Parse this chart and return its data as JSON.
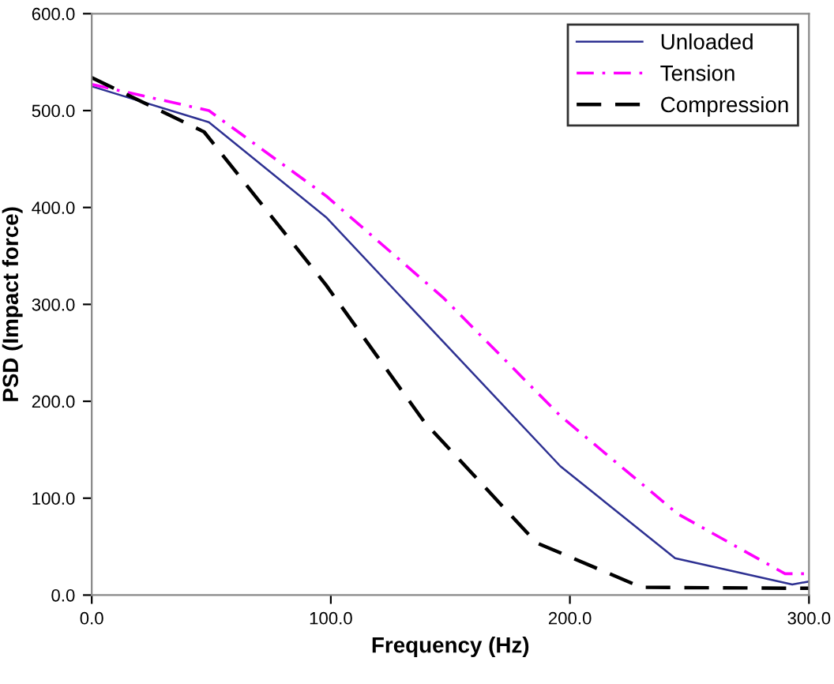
{
  "chart_data": {
    "type": "line",
    "xlabel": "Frequency (Hz)",
    "ylabel": "PSD (Impact force)",
    "xlim": [
      0,
      300
    ],
    "ylim": [
      0,
      600
    ],
    "xticks": [
      {
        "value": 0,
        "label": "0.0"
      },
      {
        "value": 100,
        "label": "100.0"
      },
      {
        "value": 200,
        "label": "200.0"
      },
      {
        "value": 300,
        "label": "300.0"
      }
    ],
    "yticks": [
      {
        "value": 0,
        "label": "0.0"
      },
      {
        "value": 100,
        "label": "100.0"
      },
      {
        "value": 200,
        "label": "200.0"
      },
      {
        "value": 300,
        "label": "300.0"
      },
      {
        "value": 400,
        "label": "400.0"
      },
      {
        "value": 500,
        "label": "500.0"
      },
      {
        "value": 600,
        "label": "600.0"
      }
    ],
    "legend": "top right",
    "grid": false,
    "series": [
      {
        "name": "Unloaded",
        "color": "#2e3192",
        "line_style": "solid",
        "x": [
          0,
          49,
          98,
          196,
          244,
          293,
          300
        ],
        "values": [
          525,
          488,
          390,
          133,
          38,
          11,
          14
        ]
      },
      {
        "name": "Tension",
        "color": "#ff00ff",
        "line_style": "dashdot",
        "x": [
          0,
          49,
          98,
          147,
          196,
          245,
          290,
          300
        ],
        "values": [
          527,
          500,
          412,
          307,
          185,
          84,
          22,
          22
        ]
      },
      {
        "name": "Compression",
        "color": "#000000",
        "line_style": "dashed",
        "x": [
          0,
          47,
          98,
          139,
          186,
          230,
          300
        ],
        "values": [
          534,
          478,
          320,
          179,
          54,
          8,
          7
        ]
      }
    ]
  }
}
